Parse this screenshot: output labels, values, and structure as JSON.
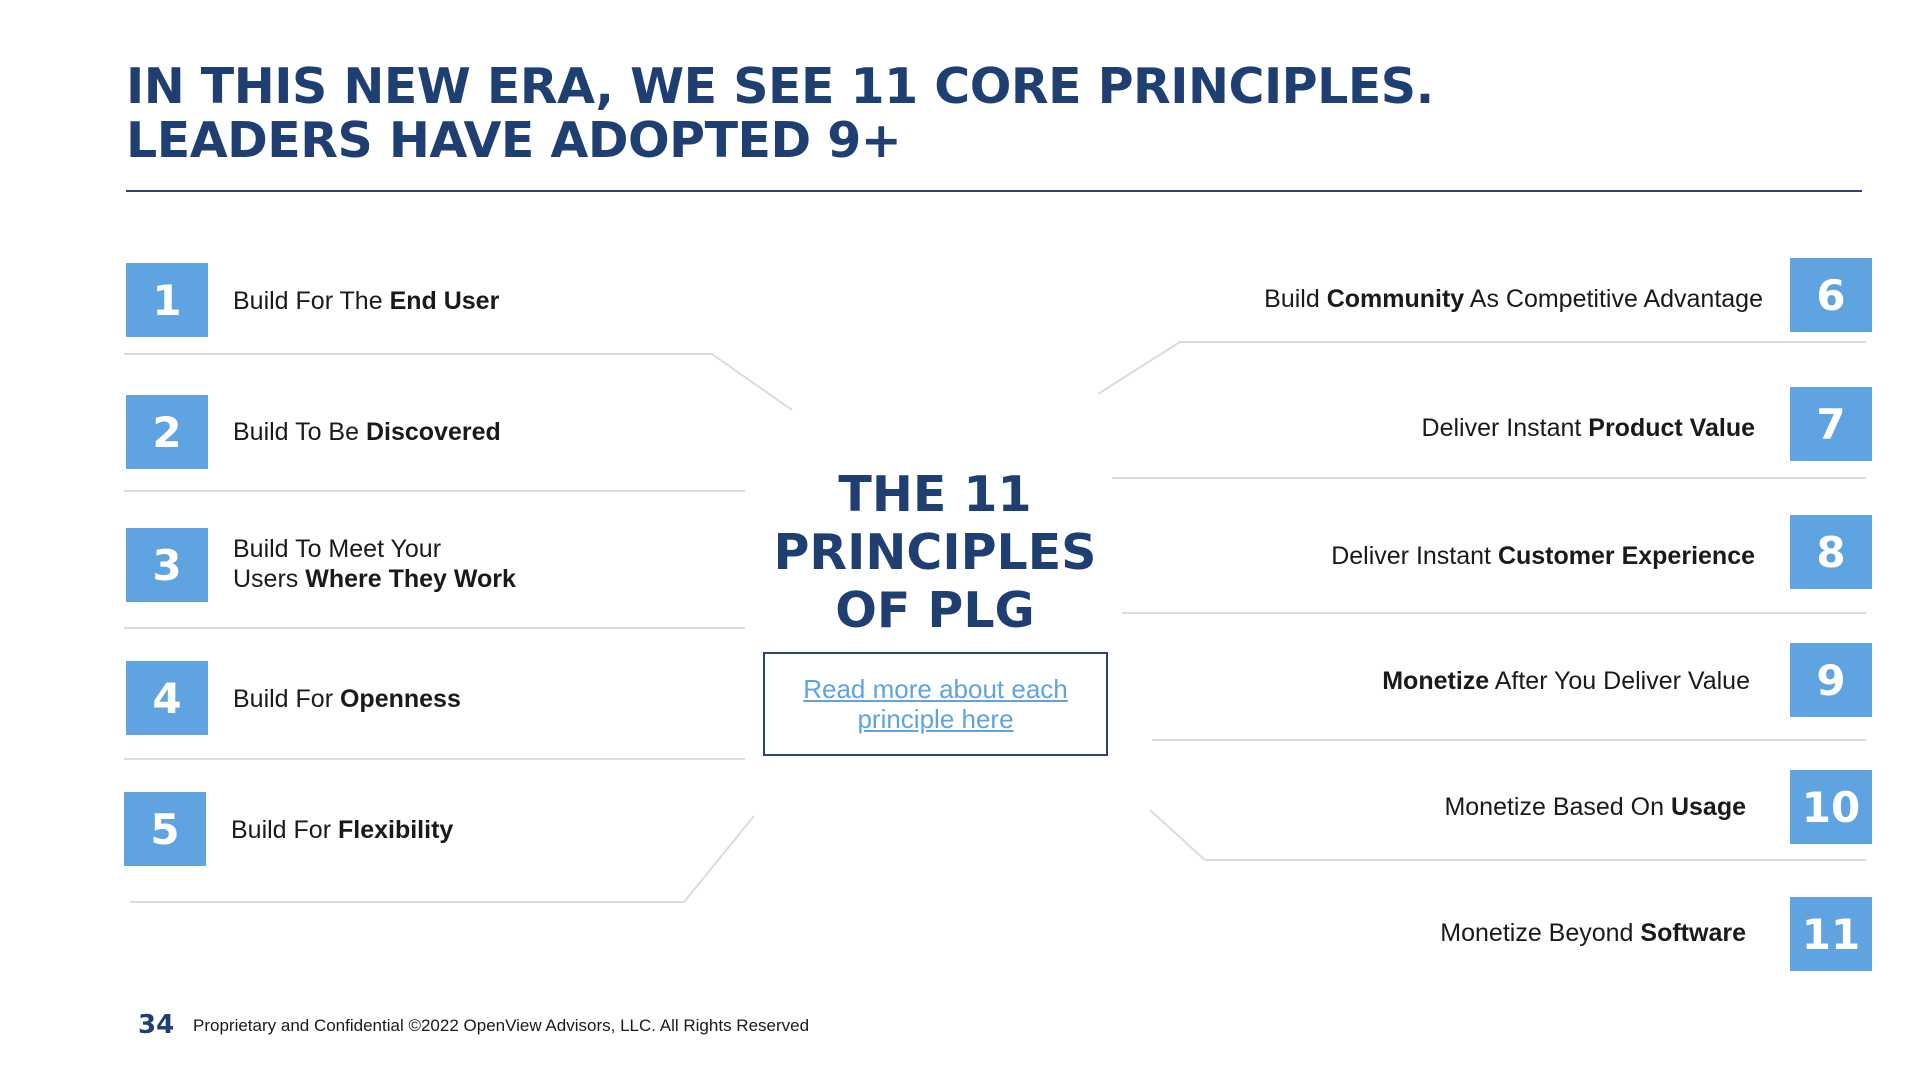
{
  "title": {
    "line1": "IN THIS NEW ERA, WE SEE 11 CORE PRINCIPLES.",
    "line2": "LEADERS HAVE ADOPTED 9+"
  },
  "center": {
    "title_line1": "THE 11",
    "title_line2": "PRINCIPLES",
    "title_line3": "OF PLG",
    "link_text": "Read more about each principle here"
  },
  "principles": [
    {
      "number": "1",
      "pre": "Build For The ",
      "bold": "End User",
      "post": ""
    },
    {
      "number": "2",
      "pre": "Build To Be ",
      "bold": "Discovered",
      "post": ""
    },
    {
      "number": "3",
      "pre": "Build To Meet Your",
      "pre2": "Users ",
      "bold": "Where They Work",
      "post": ""
    },
    {
      "number": "4",
      "pre": "Build For ",
      "bold": "Openness",
      "post": ""
    },
    {
      "number": "5",
      "pre": "Build For ",
      "bold": "Flexibility",
      "post": ""
    },
    {
      "number": "6",
      "pre": "Build ",
      "bold": "Community",
      "post": " As Competitive Advantage"
    },
    {
      "number": "7",
      "pre": "Deliver Instant ",
      "bold": "Product Value",
      "post": ""
    },
    {
      "number": "8",
      "pre": "Deliver Instant ",
      "bold": "Customer Experience",
      "post": ""
    },
    {
      "number": "9",
      "pre": "",
      "bold": "Monetize",
      "post": " After You Deliver Value"
    },
    {
      "number": "10",
      "pre": "Monetize Based On ",
      "bold": "Usage",
      "post": ""
    },
    {
      "number": "11",
      "pre": "Monetize Beyond ",
      "bold": "Software",
      "post": ""
    }
  ],
  "footer": {
    "page_number": "34",
    "text": "Proprietary and Confidential ©2022 OpenView Advisors, LLC. All Rights Reserved"
  },
  "colors": {
    "navy": "#1f3f73",
    "box_blue": "#5fa3e0",
    "link_blue": "#5fa3e0",
    "connector_gray": "#dcdcdc"
  }
}
